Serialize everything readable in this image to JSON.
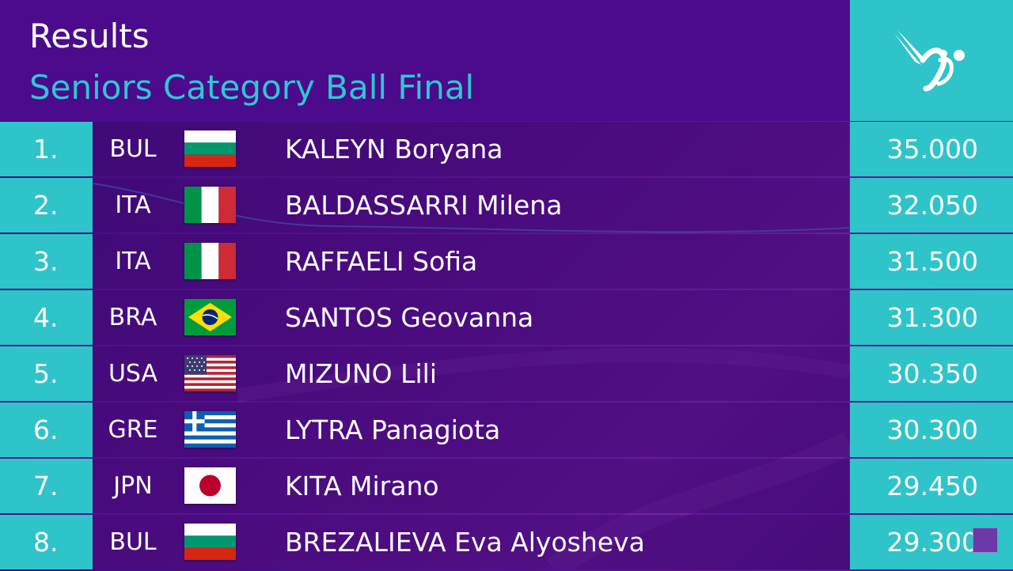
{
  "header": {
    "title": "Results",
    "subtitle": "Seniors Category Ball Final",
    "logo_icon": "gymnast-ribbon-icon"
  },
  "colors": {
    "teal": "#2fc3ca",
    "purple": "#4b0b8c",
    "subtitle": "#2ec8d2"
  },
  "results": [
    {
      "rank": "1.",
      "code": "BUL",
      "flag": "bulgaria-flag-icon",
      "name": "KALEYN Boryana",
      "score": "35.000"
    },
    {
      "rank": "2.",
      "code": "ITA",
      "flag": "italy-flag-icon",
      "name": "BALDASSARRI Milena",
      "score": "32.050"
    },
    {
      "rank": "3.",
      "code": "ITA",
      "flag": "italy-flag-icon",
      "name": "RAFFAELI Sofia",
      "score": "31.500"
    },
    {
      "rank": "4.",
      "code": "BRA",
      "flag": "brazil-flag-icon",
      "name": "SANTOS Geovanna",
      "score": "31.300"
    },
    {
      "rank": "5.",
      "code": "USA",
      "flag": "usa-flag-icon",
      "name": "MIZUNO Lili",
      "score": "30.350"
    },
    {
      "rank": "6.",
      "code": "GRE",
      "flag": "greece-flag-icon",
      "name": "LYTRA Panagiota",
      "score": "30.300"
    },
    {
      "rank": "7.",
      "code": "JPN",
      "flag": "japan-flag-icon",
      "name": "KITA Mirano",
      "score": "29.450"
    },
    {
      "rank": "8.",
      "code": "BUL",
      "flag": "bulgaria-flag-icon",
      "name": "BREZALIEVA Eva Alyosheva",
      "score": "29.300"
    }
  ]
}
